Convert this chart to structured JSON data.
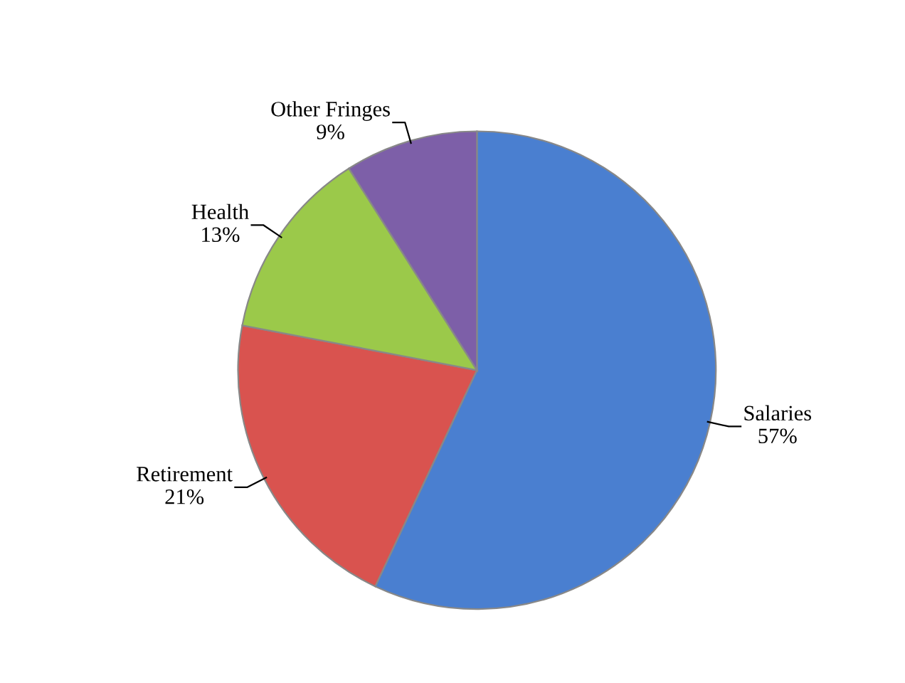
{
  "chart_data": {
    "type": "pie",
    "categories": [
      "Salaries",
      "Retirement",
      "Health",
      "Other Fringes"
    ],
    "values": [
      57,
      21,
      13,
      9
    ],
    "value_labels": [
      "57%",
      "21%",
      "13%",
      "9%"
    ],
    "colors": [
      "#4a7fd0",
      "#d9534f",
      "#9bc94a",
      "#7d5fa8"
    ],
    "legend": false
  }
}
